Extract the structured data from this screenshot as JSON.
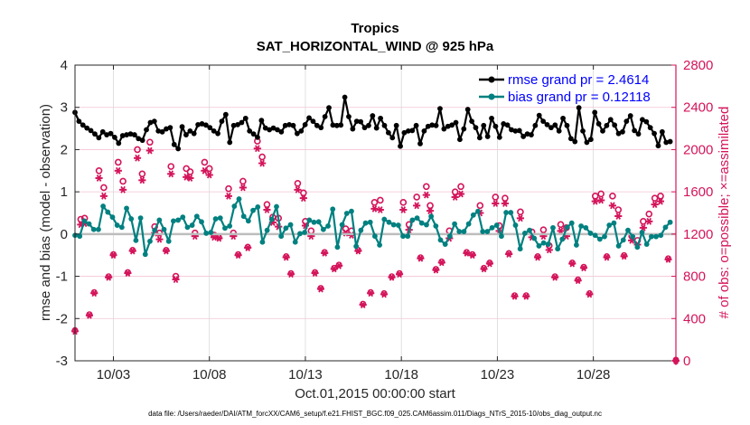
{
  "chart_data": {
    "type": "line",
    "title": "Tropics",
    "subtitle": "SAT_HORIZONTAL_WIND @ 925 hPa",
    "xlabel": "Oct.01,2015 00:00:00 start",
    "ylabel": "rmse and bias (model - observation)",
    "ylabel_right": "# of obs: o=possible; ×=assimilated",
    "footnote": "data file: /Users/raeder/DAI/ATM_forcXX/CAM6_setup/f.e21.FHIST_BGC.f09_025.CAM6assim.011/Diags_NTrS_2015-10/obs_diag_output.nc",
    "xlim_days": [
      0,
      31.3
    ],
    "x_ticks": [
      {
        "day": 2,
        "label": "10/03"
      },
      {
        "day": 7,
        "label": "10/08"
      },
      {
        "day": 12,
        "label": "10/13"
      },
      {
        "day": 17,
        "label": "10/18"
      },
      {
        "day": 22,
        "label": "10/23"
      },
      {
        "day": 27,
        "label": "10/28"
      }
    ],
    "ylim": [
      -3,
      4
    ],
    "y_ticks": [
      -3,
      -2,
      -1,
      0,
      1,
      2,
      3,
      4
    ],
    "ylim_right": [
      0,
      2800
    ],
    "y_ticks_right": [
      0,
      400,
      800,
      1200,
      1600,
      2000,
      2400,
      2800
    ],
    "grid": true,
    "zero_line": true,
    "legend_position": "top-right",
    "time_step_days": 0.25,
    "series": [
      {
        "name": "rmse grand pr = 2.4614",
        "color": "#000000",
        "values": [
          2.88,
          2.67,
          2.58,
          2.51,
          2.45,
          2.37,
          2.28,
          2.42,
          2.35,
          2.38,
          2.29,
          2.15,
          2.33,
          2.35,
          2.37,
          2.35,
          2.26,
          2.22,
          2.47,
          2.64,
          2.67,
          2.44,
          2.42,
          2.49,
          2.52,
          2.12,
          2.02,
          2.54,
          2.35,
          2.44,
          2.38,
          2.59,
          2.61,
          2.58,
          2.52,
          2.44,
          2.38,
          2.67,
          2.83,
          2.17,
          2.57,
          2.59,
          2.64,
          2.74,
          2.44,
          2.37,
          2.29,
          2.69,
          2.51,
          2.47,
          2.51,
          2.47,
          2.42,
          2.57,
          2.59,
          2.57,
          2.38,
          2.44,
          2.59,
          2.75,
          2.67,
          2.57,
          2.52,
          2.78,
          2.99,
          2.58,
          2.57,
          2.58,
          3.24,
          2.78,
          2.49,
          2.67,
          2.66,
          2.52,
          2.57,
          2.8,
          2.51,
          2.74,
          2.57,
          2.4,
          2.28,
          2.57,
          2.08,
          2.4,
          2.44,
          2.45,
          2.57,
          2.14,
          2.44,
          2.55,
          2.58,
          2.57,
          2.97,
          2.49,
          2.55,
          2.58,
          2.64,
          2.24,
          2.49,
          2.95,
          2.67,
          2.52,
          2.28,
          2.57,
          2.31,
          2.74,
          2.55,
          2.29,
          2.61,
          2.58,
          2.47,
          2.44,
          2.45,
          2.31,
          2.37,
          2.35,
          2.57,
          2.81,
          2.67,
          2.59,
          2.52,
          2.58,
          2.44,
          2.74,
          2.57,
          2.26,
          2.19,
          2.99,
          2.44,
          2.17,
          2.24,
          2.88,
          2.61,
          2.44,
          2.57,
          2.71,
          2.58,
          2.38,
          2.42,
          2.67,
          2.8,
          2.45,
          2.37,
          2.71,
          2.66,
          2.52,
          2.38,
          2.09,
          2.42,
          2.17,
          2.19
        ]
      },
      {
        "name": "bias grand pr = 0.12118",
        "color": "#008080",
        "values": [
          -0.03,
          -0.05,
          0.31,
          0.24,
          0.11,
          0.11,
          0.66,
          0.52,
          0.4,
          0.21,
          0.16,
          0.61,
          0.36,
          -0.15,
          0.38,
          -0.48,
          -0.17,
          0.09,
          0.33,
          0.11,
          -0.17,
          0.31,
          0.33,
          0.4,
          0.16,
          0.21,
          0.42,
          0.29,
          0.02,
          0.04,
          0.36,
          0.38,
          0.14,
          0.19,
          0.66,
          0.83,
          0.42,
          0.31,
          0.56,
          0.64,
          -0.19,
          0.09,
          0.35,
          0.65,
          -0.05,
          0.14,
          0.22,
          -0.19,
          0.01,
          0.04,
          0.33,
          0.28,
          0.29,
          0.11,
          0.19,
          0.59,
          -0.31,
          0.22,
          0.49,
          0.54,
          -0.29,
          0.09,
          0.26,
          0.28,
          -0.05,
          -0.26,
          0.35,
          0.28,
          0.22,
          0.21,
          -0.05,
          -0.05,
          0.33,
          0.38,
          0.26,
          0.22,
          0.42,
          0.19,
          -0.14,
          -0.24,
          -0.05,
          0.24,
          0.06,
          0.06,
          0.24,
          0.45,
          0.54,
          0.06,
          0.06,
          0.15,
          0.21,
          -0.05,
          0.51,
          0.51,
          0.21,
          -0.35,
          0.02,
          0.09,
          -0.1,
          -0.28,
          -0.21,
          -0.24,
          0.15,
          -0.35,
          -0.12,
          0.16,
          0.26,
          -0.26,
          0.19,
          0.15,
          0.02,
          -0.03,
          -0.12,
          -0.06,
          0.21,
          0.26,
          -0.28,
          -0.14,
          0.09,
          -0.06,
          -0.31,
          0.04,
          -0.24,
          -0.06,
          -0.06,
          -0.03,
          0.16,
          0.28
        ]
      }
    ],
    "obs_counts": {
      "possible_color": "#d4145a",
      "assimilated_color": "#d4145a",
      "points": [
        {
          "day": 0.0,
          "possible": 280,
          "assimilated": 280
        },
        {
          "day": 0.3,
          "possible": 1340,
          "assimilated": 1290
        },
        {
          "day": 0.5,
          "possible": 1350,
          "assimilated": 1300
        },
        {
          "day": 0.75,
          "possible": 430,
          "assimilated": 430
        },
        {
          "day": 1.0,
          "possible": 640,
          "assimilated": 640
        },
        {
          "day": 1.25,
          "possible": 1800,
          "assimilated": 1730
        },
        {
          "day": 1.5,
          "possible": 1640,
          "assimilated": 1560
        },
        {
          "day": 1.75,
          "possible": 790,
          "assimilated": 790
        },
        {
          "day": 2.0,
          "possible": 1000,
          "assimilated": 1000
        },
        {
          "day": 2.25,
          "possible": 1880,
          "assimilated": 1800
        },
        {
          "day": 2.5,
          "possible": 1700,
          "assimilated": 1620
        },
        {
          "day": 2.75,
          "possible": 830,
          "assimilated": 830
        },
        {
          "day": 3.0,
          "possible": 1040,
          "assimilated": 1040
        },
        {
          "day": 3.25,
          "possible": 2000,
          "assimilated": 1920
        },
        {
          "day": 3.5,
          "possible": 1770,
          "assimilated": 1710
        },
        {
          "day": 3.9,
          "possible": 2070,
          "assimilated": 1990
        },
        {
          "day": 4.15,
          "possible": 1270,
          "assimilated": 1210
        },
        {
          "day": 4.4,
          "possible": 1210,
          "assimilated": 1150
        },
        {
          "day": 4.75,
          "possible": 1040,
          "assimilated": 1040
        },
        {
          "day": 5.0,
          "possible": 1840,
          "assimilated": 1770
        },
        {
          "day": 5.25,
          "possible": 800,
          "assimilated": 770
        },
        {
          "day": 5.8,
          "possible": 1820,
          "assimilated": 1740
        },
        {
          "day": 6.0,
          "possible": 1790,
          "assimilated": 1730
        },
        {
          "day": 6.25,
          "possible": 1210,
          "assimilated": 1180
        },
        {
          "day": 6.75,
          "possible": 1880,
          "assimilated": 1800
        },
        {
          "day": 7.0,
          "possible": 1820,
          "assimilated": 1760
        },
        {
          "day": 7.25,
          "possible": 1190,
          "assimilated": 1170
        },
        {
          "day": 7.5,
          "possible": 1160,
          "assimilated": 1160
        },
        {
          "day": 8.0,
          "possible": 1630,
          "assimilated": 1560
        },
        {
          "day": 8.25,
          "possible": 1210,
          "assimilated": 1180
        },
        {
          "day": 8.5,
          "possible": 1000,
          "assimilated": 1000
        },
        {
          "day": 8.75,
          "possible": 1700,
          "assimilated": 1640
        },
        {
          "day": 9.0,
          "possible": 1070,
          "assimilated": 1070
        },
        {
          "day": 9.5,
          "possible": 2080,
          "assimilated": 2010
        },
        {
          "day": 9.75,
          "possible": 1930,
          "assimilated": 1870
        },
        {
          "day": 10.0,
          "possible": 1480,
          "assimilated": 1430
        },
        {
          "day": 10.3,
          "possible": 1360,
          "assimilated": 1310
        },
        {
          "day": 10.6,
          "possible": 1350,
          "assimilated": 1270
        },
        {
          "day": 11.0,
          "possible": 980,
          "assimilated": 980
        },
        {
          "day": 11.25,
          "possible": 820,
          "assimilated": 820
        },
        {
          "day": 11.6,
          "possible": 1680,
          "assimilated": 1620
        },
        {
          "day": 11.9,
          "possible": 1590,
          "assimilated": 1540
        },
        {
          "day": 12.0,
          "possible": 1320,
          "assimilated": 1280
        },
        {
          "day": 12.3,
          "possible": 1230,
          "assimilated": 1180
        },
        {
          "day": 12.5,
          "possible": 830,
          "assimilated": 830
        },
        {
          "day": 12.8,
          "possible": 680,
          "assimilated": 680
        },
        {
          "day": 13.0,
          "possible": 1020,
          "assimilated": 1020
        },
        {
          "day": 13.5,
          "possible": 870,
          "assimilated": 870
        },
        {
          "day": 13.75,
          "possible": 900,
          "assimilated": 900
        },
        {
          "day": 14.1,
          "possible": 1250,
          "assimilated": 1210
        },
        {
          "day": 14.4,
          "possible": 1230,
          "assimilated": 1190
        },
        {
          "day": 14.75,
          "possible": 1040,
          "assimilated": 1040
        },
        {
          "day": 15.0,
          "possible": 530,
          "assimilated": 530
        },
        {
          "day": 15.4,
          "possible": 640,
          "assimilated": 640
        },
        {
          "day": 15.6,
          "possible": 1500,
          "assimilated": 1440
        },
        {
          "day": 15.9,
          "possible": 1520,
          "assimilated": 1430
        },
        {
          "day": 16.1,
          "possible": 630,
          "assimilated": 630
        },
        {
          "day": 16.5,
          "possible": 790,
          "assimilated": 790
        },
        {
          "day": 16.9,
          "possible": 820,
          "assimilated": 820
        },
        {
          "day": 17.1,
          "possible": 1500,
          "assimilated": 1430
        },
        {
          "day": 17.4,
          "possible": 1290,
          "assimilated": 1240
        },
        {
          "day": 17.8,
          "possible": 1550,
          "assimilated": 1470
        },
        {
          "day": 18.0,
          "possible": 970,
          "assimilated": 970
        },
        {
          "day": 18.3,
          "possible": 1650,
          "assimilated": 1570
        },
        {
          "day": 18.5,
          "possible": 1470,
          "assimilated": 1420
        },
        {
          "day": 18.8,
          "possible": 860,
          "assimilated": 860
        },
        {
          "day": 19.1,
          "possible": 930,
          "assimilated": 930
        },
        {
          "day": 19.5,
          "possible": 1230,
          "assimilated": 1160
        },
        {
          "day": 19.8,
          "possible": 1600,
          "assimilated": 1550
        },
        {
          "day": 20.1,
          "possible": 1650,
          "assimilated": 1580
        },
        {
          "day": 20.4,
          "possible": 1020,
          "assimilated": 1020
        },
        {
          "day": 20.7,
          "possible": 1000,
          "assimilated": 1000
        },
        {
          "day": 21.1,
          "possible": 1470,
          "assimilated": 1400
        },
        {
          "day": 21.3,
          "possible": 870,
          "assimilated": 870
        },
        {
          "day": 21.6,
          "possible": 920,
          "assimilated": 920
        },
        {
          "day": 21.9,
          "possible": 1550,
          "assimilated": 1490
        },
        {
          "day": 22.1,
          "possible": 1280,
          "assimilated": 1230
        },
        {
          "day": 22.4,
          "possible": 1540,
          "assimilated": 1490
        },
        {
          "day": 22.6,
          "possible": 1010,
          "assimilated": 1010
        },
        {
          "day": 22.9,
          "possible": 610,
          "assimilated": 610
        },
        {
          "day": 23.2,
          "possible": 1410,
          "assimilated": 1350
        },
        {
          "day": 23.5,
          "possible": 610,
          "assimilated": 610
        },
        {
          "day": 23.8,
          "possible": 1220,
          "assimilated": 1170
        },
        {
          "day": 24.1,
          "possible": 980,
          "assimilated": 980
        },
        {
          "day": 24.4,
          "possible": 1240,
          "assimilated": 1180
        },
        {
          "day": 24.7,
          "possible": 1090,
          "assimilated": 1050
        },
        {
          "day": 25.0,
          "possible": 790,
          "assimilated": 790
        },
        {
          "day": 25.3,
          "possible": 1290,
          "assimilated": 1230
        },
        {
          "day": 25.6,
          "possible": 1260,
          "assimilated": 1180
        },
        {
          "day": 25.9,
          "possible": 920,
          "assimilated": 920
        },
        {
          "day": 26.2,
          "possible": 760,
          "assimilated": 760
        },
        {
          "day": 26.5,
          "possible": 880,
          "assimilated": 880
        },
        {
          "day": 26.8,
          "possible": 630,
          "assimilated": 630
        },
        {
          "day": 27.1,
          "possible": 1560,
          "assimilated": 1510
        },
        {
          "day": 27.4,
          "possible": 1580,
          "assimilated": 1520
        },
        {
          "day": 27.7,
          "possible": 980,
          "assimilated": 980
        },
        {
          "day": 28.0,
          "possible": 1560,
          "assimilated": 1470
        },
        {
          "day": 28.3,
          "possible": 1430,
          "assimilated": 1370
        },
        {
          "day": 28.6,
          "possible": 990,
          "assimilated": 990
        },
        {
          "day": 29.0,
          "possible": 1180,
          "assimilated": 1140
        },
        {
          "day": 29.3,
          "possible": 1140,
          "assimilated": 1100
        },
        {
          "day": 29.6,
          "possible": 1320,
          "assimilated": 1260
        },
        {
          "day": 29.9,
          "possible": 1390,
          "assimilated": 1320
        },
        {
          "day": 30.2,
          "possible": 1540,
          "assimilated": 1480
        },
        {
          "day": 30.5,
          "possible": 1560,
          "assimilated": 1510
        },
        {
          "day": 30.9,
          "possible": 960,
          "assimilated": 960
        },
        {
          "day": 31.3,
          "possible": 0,
          "assimilated": 0
        }
      ]
    }
  }
}
